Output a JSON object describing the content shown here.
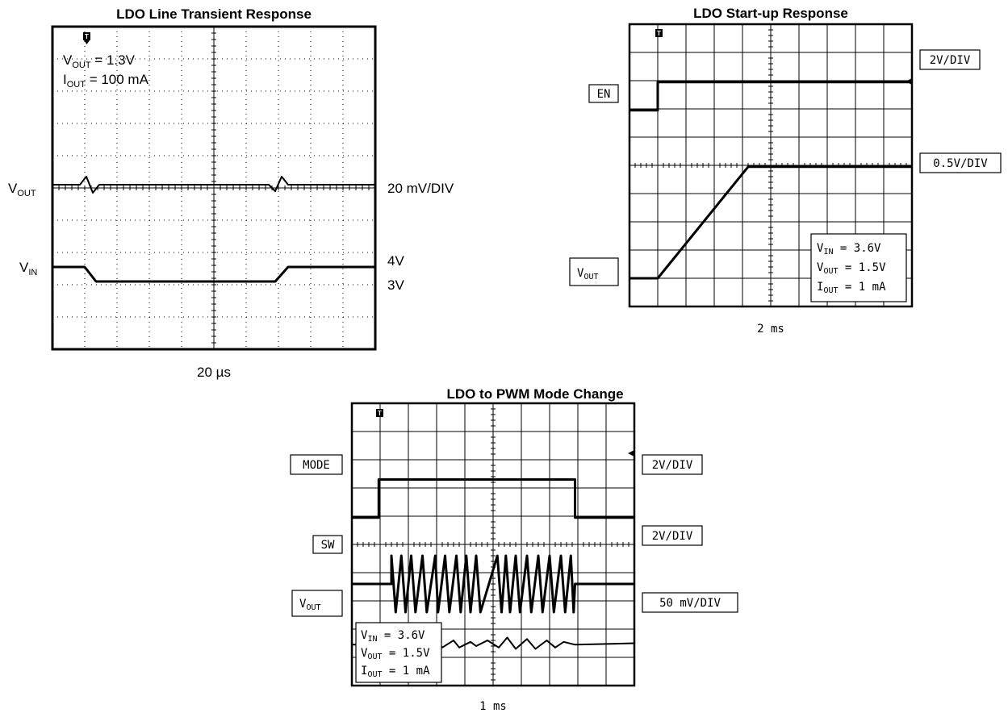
{
  "chart_data": [
    {
      "type": "line",
      "title": "LDO Line Transient Response",
      "time_scale": "20 µs",
      "annotations": [
        {
          "name": "V",
          "sub": "OUT",
          "value": " = 1.3V"
        },
        {
          "name": "I",
          "sub": "OUT",
          "value": " = 100 mA"
        }
      ],
      "series": [
        {
          "name": "V",
          "sub": "OUT",
          "scale": "20 mV/DIV",
          "points": [
            [
              0,
              5.1
            ],
            [
              0.85,
              5.1
            ],
            [
              1.05,
              5.35
            ],
            [
              1.25,
              4.85
            ],
            [
              1.45,
              5.1
            ],
            [
              6.7,
              5.1
            ],
            [
              6.9,
              4.9
            ],
            [
              7.1,
              5.35
            ],
            [
              7.3,
              5.1
            ],
            [
              10,
              5.1
            ]
          ]
        },
        {
          "name": "V",
          "sub": "IN",
          "scale_high": "4V",
          "scale_low": "3V",
          "points": [
            [
              0,
              2.55
            ],
            [
              1.0,
              2.55
            ],
            [
              1.35,
              2.1
            ],
            [
              6.9,
              2.1
            ],
            [
              7.3,
              2.55
            ],
            [
              10,
              2.55
            ]
          ]
        }
      ]
    },
    {
      "type": "line",
      "title": "LDO Start-up Response",
      "time_scale": "2 ms",
      "legend": [
        {
          "name": "V",
          "sub": "IN",
          "value": "  =  3.6V"
        },
        {
          "name": "V",
          "sub": "OUT",
          "value": "  =  1.5V"
        },
        {
          "name": "I",
          "sub": "OUT",
          "value": "  =  1 mA"
        }
      ],
      "series": [
        {
          "name": "EN",
          "scale": "2V/DIV",
          "points": [
            [
              0,
              6.95
            ],
            [
              1.0,
              6.95
            ],
            [
              1.0,
              7.95
            ],
            [
              10,
              7.95
            ]
          ]
        },
        {
          "name": "V",
          "sub": "OUT",
          "scale": "0.5V/DIV",
          "points": [
            [
              0,
              1.0
            ],
            [
              1.0,
              1.0
            ],
            [
              4.2,
              4.95
            ],
            [
              10,
              4.95
            ]
          ]
        }
      ]
    },
    {
      "type": "line",
      "title": "LDO to PWM Mode Change",
      "time_scale": "1 ms",
      "legend": [
        {
          "name": "V",
          "sub": "IN",
          "value": "  =  3.6V"
        },
        {
          "name": "V",
          "sub": "OUT",
          "value": "  =  1.5V"
        },
        {
          "name": "I",
          "sub": "OUT",
          "value": "  =  1 mA"
        }
      ],
      "series": [
        {
          "name": "MODE",
          "scale": "2V/DIV",
          "points": [
            [
              0,
              5.95
            ],
            [
              0.95,
              5.95
            ],
            [
              0.95,
              7.3
            ],
            [
              7.9,
              7.3
            ],
            [
              7.9,
              5.95
            ],
            [
              10,
              5.95
            ]
          ]
        },
        {
          "name": "SW",
          "scale": "2V/DIV",
          "points": [
            [
              0,
              3.6
            ],
            [
              1.4,
              3.6
            ],
            [
              1.4,
              4.6
            ],
            [
              1.55,
              2.6
            ],
            [
              1.75,
              4.6
            ],
            [
              1.9,
              2.6
            ],
            [
              2.1,
              4.6
            ],
            [
              2.25,
              2.6
            ],
            [
              2.5,
              4.6
            ],
            [
              2.65,
              2.6
            ],
            [
              2.95,
              4.6
            ],
            [
              3.05,
              2.6
            ],
            [
              3.3,
              4.6
            ],
            [
              3.45,
              2.6
            ],
            [
              3.7,
              4.6
            ],
            [
              3.85,
              2.6
            ],
            [
              4.05,
              4.6
            ],
            [
              4.2,
              2.6
            ],
            [
              4.4,
              4.6
            ],
            [
              4.55,
              2.6
            ],
            [
              5.15,
              4.6
            ],
            [
              5.3,
              2.6
            ],
            [
              5.45,
              4.6
            ],
            [
              5.6,
              2.6
            ],
            [
              5.8,
              4.6
            ],
            [
              5.95,
              2.6
            ],
            [
              6.2,
              4.6
            ],
            [
              6.35,
              2.6
            ],
            [
              6.6,
              4.6
            ],
            [
              6.75,
              2.6
            ],
            [
              7.0,
              4.6
            ],
            [
              7.15,
              2.6
            ],
            [
              7.4,
              4.6
            ],
            [
              7.55,
              2.6
            ],
            [
              7.75,
              4.6
            ],
            [
              7.85,
              2.6
            ],
            [
              7.9,
              3.6
            ],
            [
              10,
              3.6
            ]
          ]
        },
        {
          "name": "V",
          "sub": "OUT",
          "scale": "50 mV/DIV",
          "points": [
            [
              0,
              1.45
            ],
            [
              1.4,
              1.45
            ],
            [
              1.8,
              1.7
            ],
            [
              2.0,
              1.3
            ],
            [
              2.4,
              1.65
            ],
            [
              2.6,
              1.3
            ],
            [
              3.0,
              1.6
            ],
            [
              3.2,
              1.35
            ],
            [
              3.6,
              1.6
            ],
            [
              3.8,
              1.35
            ],
            [
              4.2,
              1.55
            ],
            [
              4.4,
              1.4
            ],
            [
              4.8,
              1.6
            ],
            [
              5.2,
              1.35
            ],
            [
              5.5,
              1.7
            ],
            [
              5.8,
              1.3
            ],
            [
              6.2,
              1.65
            ],
            [
              6.5,
              1.3
            ],
            [
              6.9,
              1.6
            ],
            [
              7.2,
              1.35
            ],
            [
              7.5,
              1.55
            ],
            [
              7.9,
              1.45
            ],
            [
              10,
              1.5
            ]
          ]
        }
      ]
    }
  ]
}
